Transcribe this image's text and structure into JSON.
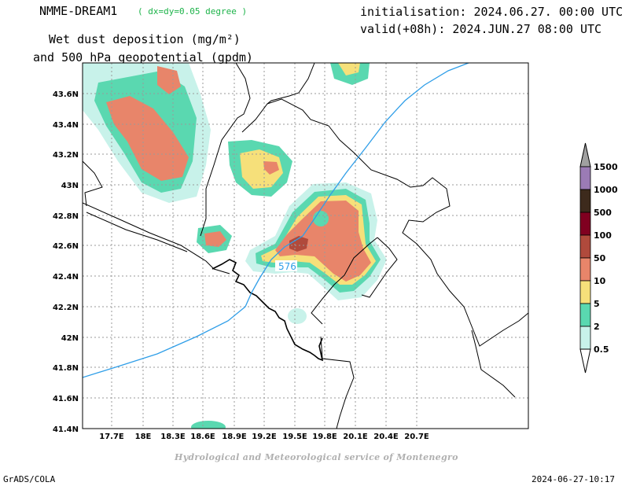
{
  "header": {
    "model": "NMME-DREAM1",
    "resolution": "( dx=dy=0.05 degree )",
    "field_line1": "Wet dust deposition (mg/m²)",
    "field_line2": "and 500 hPa geopotential (gpdm)",
    "init": "initialisation: 2024.06.27. 00:00 UTC",
    "valid": "valid(+08h): 2024.JUN.27 08:00 UTC"
  },
  "map": {
    "lon_labels": [
      "17.7E",
      "18E",
      "18.3E",
      "18.6E",
      "18.9E",
      "19.2E",
      "19.5E",
      "19.8E",
      "20.1E",
      "20.4E",
      "20.7E"
    ],
    "lat_labels": [
      "43.6N",
      "43.4N",
      "43.2N",
      "43N",
      "42.8N",
      "42.6N",
      "42.4N",
      "42.2N",
      "42N",
      "41.8N",
      "41.6N",
      "41.4N"
    ],
    "contour_label": "576",
    "contour_color": "#2f9ee8",
    "border_color": "#000000"
  },
  "legend": {
    "levels": [
      "1500",
      "1000",
      "500",
      "100",
      "50",
      "10",
      "5",
      "2",
      "0.5"
    ],
    "colors": [
      "#9b7bb5",
      "#3d2a1c",
      "#800020",
      "#b04a3c",
      "#e8856a",
      "#f6e07a",
      "#5ad8b0",
      "#c8f2ea"
    ],
    "arrow_top_color": "#a0a0a0"
  },
  "footer": {
    "credit": "Hydrological and Meteorological service of Montenegro",
    "left": "GrADS/COLA",
    "right": "2024-06-27-10:17"
  }
}
